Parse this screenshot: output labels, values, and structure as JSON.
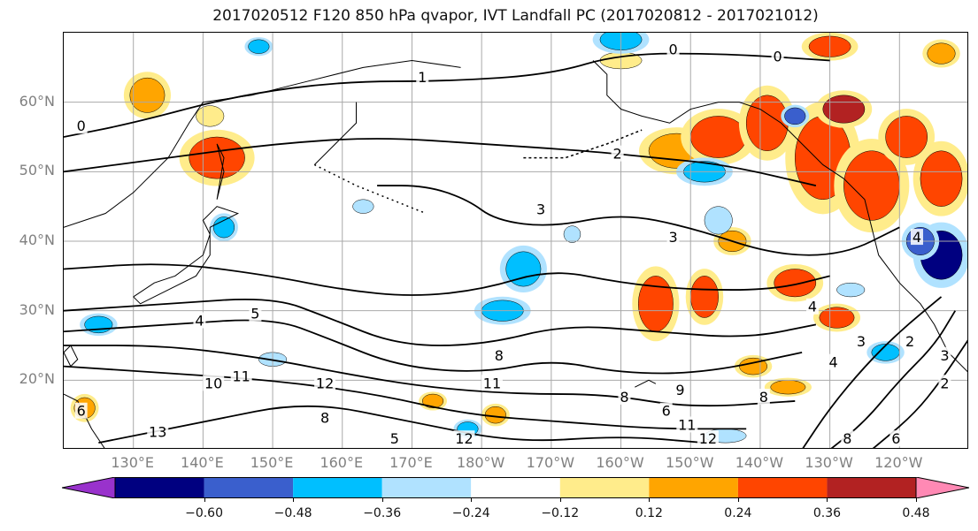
{
  "title": "2017020512 F120 850 hPa qvapor, IVT Landfall PC (2017020812 - 2017021012)",
  "map": {
    "latitudes": [
      {
        "label": "60°N",
        "value": 60
      },
      {
        "label": "50°N",
        "value": 50
      },
      {
        "label": "40°N",
        "value": 40
      },
      {
        "label": "30°N",
        "value": 30
      },
      {
        "label": "20°N",
        "value": 20
      }
    ],
    "longitudes": [
      {
        "label": "130°E",
        "value": 130
      },
      {
        "label": "140°E",
        "value": 140
      },
      {
        "label": "150°E",
        "value": 150
      },
      {
        "label": "160°E",
        "value": 160
      },
      {
        "label": "170°E",
        "value": 170
      },
      {
        "label": "180°W",
        "value": 180
      },
      {
        "label": "170°W",
        "value": 190
      },
      {
        "label": "160°W",
        "value": 200
      },
      {
        "label": "150°W",
        "value": 210
      },
      {
        "label": "140°W",
        "value": 220
      },
      {
        "label": "130°W",
        "value": 230
      },
      {
        "label": "120°W",
        "value": 240
      }
    ],
    "lon_range": [
      120,
      250
    ],
    "lat_range": [
      10,
      70
    ],
    "gridlines": true,
    "contour_labels": [
      {
        "text": "0",
        "lon": 122.5,
        "lat": 56.5
      },
      {
        "text": "1",
        "lon": 171.5,
        "lat": 63.5
      },
      {
        "text": "0",
        "lon": 207.5,
        "lat": 67.5
      },
      {
        "text": "0",
        "lon": 222.5,
        "lat": 66.5
      },
      {
        "text": "2",
        "lon": 199.5,
        "lat": 52.5
      },
      {
        "text": "3",
        "lon": 188.5,
        "lat": 44.5
      },
      {
        "text": "3",
        "lon": 207.5,
        "lat": 40.5
      },
      {
        "text": "4",
        "lon": 139.5,
        "lat": 28.5
      },
      {
        "text": "5",
        "lon": 147.5,
        "lat": 29.5
      },
      {
        "text": "4",
        "lon": 227.5,
        "lat": 30.5
      },
      {
        "text": "8",
        "lon": 182.5,
        "lat": 23.5
      },
      {
        "text": "10",
        "lon": 141.5,
        "lat": 19.5
      },
      {
        "text": "11",
        "lon": 145.5,
        "lat": 20.5
      },
      {
        "text": "12",
        "lon": 157.5,
        "lat": 19.5
      },
      {
        "text": "8",
        "lon": 157.5,
        "lat": 14.5
      },
      {
        "text": "11",
        "lon": 181.5,
        "lat": 19.5
      },
      {
        "text": "8",
        "lon": 200.5,
        "lat": 17.5
      },
      {
        "text": "9",
        "lon": 208.5,
        "lat": 18.5
      },
      {
        "text": "6",
        "lon": 206.5,
        "lat": 15.5
      },
      {
        "text": "11",
        "lon": 209.5,
        "lat": 13.5
      },
      {
        "text": "12",
        "lon": 212.5,
        "lat": 11.5
      },
      {
        "text": "13",
        "lon": 133.5,
        "lat": 12.5
      },
      {
        "text": "5",
        "lon": 167.5,
        "lat": 11.5
      },
      {
        "text": "12",
        "lon": 177.5,
        "lat": 11.5
      },
      {
        "text": "6",
        "lon": 122.5,
        "lat": 15.5
      },
      {
        "text": "8",
        "lon": 220.5,
        "lat": 17.5
      },
      {
        "text": "3",
        "lon": 234.5,
        "lat": 25.5
      },
      {
        "text": "4",
        "lon": 230.5,
        "lat": 22.5
      },
      {
        "text": "2",
        "lon": 241.5,
        "lat": 25.5
      },
      {
        "text": "3",
        "lon": 246.5,
        "lat": 23.5
      },
      {
        "text": "2",
        "lon": 246.5,
        "lat": 19.5
      },
      {
        "text": "4",
        "lon": 242.5,
        "lat": 40.5
      },
      {
        "text": "8",
        "lon": 232.5,
        "lat": 11.5
      },
      {
        "text": "6",
        "lon": 239.5,
        "lat": 11.5
      }
    ],
    "anomaly_patches": [
      {
        "lon": 132,
        "lat": 61,
        "rx": 2.5,
        "ry": 2.5,
        "v": 0.3
      },
      {
        "lon": 142,
        "lat": 52,
        "rx": 4,
        "ry": 3,
        "v": 0.38
      },
      {
        "lon": 141,
        "lat": 58,
        "rx": 2,
        "ry": 1.5,
        "v": 0.2
      },
      {
        "lon": 208,
        "lat": 53,
        "rx": 4,
        "ry": 2.5,
        "v": 0.3
      },
      {
        "lon": 214,
        "lat": 55,
        "rx": 4,
        "ry": 3,
        "v": 0.4
      },
      {
        "lon": 221,
        "lat": 57,
        "rx": 3,
        "ry": 4,
        "v": 0.45
      },
      {
        "lon": 229,
        "lat": 52,
        "rx": 4,
        "ry": 6,
        "v": 0.42
      },
      {
        "lon": 232,
        "lat": 59,
        "rx": 3,
        "ry": 2,
        "v": 0.55
      },
      {
        "lon": 236,
        "lat": 48,
        "rx": 4,
        "ry": 5,
        "v": 0.4
      },
      {
        "lon": 241,
        "lat": 55,
        "rx": 3,
        "ry": 3,
        "v": 0.38
      },
      {
        "lon": 246,
        "lat": 49,
        "rx": 3,
        "ry": 4,
        "v": 0.38
      },
      {
        "lon": 205,
        "lat": 31,
        "rx": 2.5,
        "ry": 4,
        "v": 0.36
      },
      {
        "lon": 212,
        "lat": 32,
        "rx": 2,
        "ry": 3,
        "v": 0.38
      },
      {
        "lon": 225,
        "lat": 34,
        "rx": 3,
        "ry": 2,
        "v": 0.4
      },
      {
        "lon": 216,
        "lat": 40,
        "rx": 2,
        "ry": 1.5,
        "v": 0.28
      },
      {
        "lon": 231,
        "lat": 29,
        "rx": 2.5,
        "ry": 1.5,
        "v": 0.42
      },
      {
        "lon": 219,
        "lat": 22,
        "rx": 2,
        "ry": 1.2,
        "v": 0.3
      },
      {
        "lon": 182,
        "lat": 15,
        "rx": 1.5,
        "ry": 1.2,
        "v": 0.3
      },
      {
        "lon": 173,
        "lat": 17,
        "rx": 1.5,
        "ry": 1,
        "v": 0.25
      },
      {
        "lon": 200,
        "lat": 66,
        "rx": 3,
        "ry": 1.2,
        "v": 0.22
      },
      {
        "lon": 230,
        "lat": 68,
        "rx": 3,
        "ry": 1.5,
        "v": 0.4
      },
      {
        "lon": 246,
        "lat": 67,
        "rx": 2,
        "ry": 1.5,
        "v": 0.3
      },
      {
        "lon": 224,
        "lat": 19,
        "rx": 2.5,
        "ry": 1,
        "v": 0.26
      },
      {
        "lon": 123,
        "lat": 16,
        "rx": 1.5,
        "ry": 1.5,
        "v": 0.3
      },
      {
        "lon": 246,
        "lat": 38,
        "rx": 3,
        "ry": 3.5,
        "v": -0.55
      },
      {
        "lon": 243,
        "lat": 40,
        "rx": 2,
        "ry": 2,
        "v": -0.4
      },
      {
        "lon": 212,
        "lat": 50,
        "rx": 3,
        "ry": 1.5,
        "v": -0.3
      },
      {
        "lon": 200,
        "lat": 69,
        "rx": 3,
        "ry": 1.5,
        "v": -0.3
      },
      {
        "lon": 148,
        "lat": 68,
        "rx": 1.5,
        "ry": 1,
        "v": -0.25
      },
      {
        "lon": 143,
        "lat": 42,
        "rx": 1.5,
        "ry": 1.5,
        "v": -0.25
      },
      {
        "lon": 163,
        "lat": 45,
        "rx": 1.5,
        "ry": 1,
        "v": -0.2
      },
      {
        "lon": 186,
        "lat": 36,
        "rx": 2.5,
        "ry": 2.5,
        "v": -0.3
      },
      {
        "lon": 183,
        "lat": 30,
        "rx": 3,
        "ry": 1.5,
        "v": -0.35
      },
      {
        "lon": 193,
        "lat": 41,
        "rx": 1.2,
        "ry": 1.2,
        "v": -0.2
      },
      {
        "lon": 125,
        "lat": 28,
        "rx": 2,
        "ry": 1.2,
        "v": -0.25
      },
      {
        "lon": 214,
        "lat": 43,
        "rx": 2,
        "ry": 2,
        "v": -0.2
      },
      {
        "lon": 238,
        "lat": 24,
        "rx": 2,
        "ry": 1.2,
        "v": -0.25
      },
      {
        "lon": 215,
        "lat": 12,
        "rx": 3,
        "ry": 1,
        "v": -0.2
      },
      {
        "lon": 233,
        "lat": 33,
        "rx": 2,
        "ry": 1,
        "v": -0.22
      },
      {
        "lon": 225,
        "lat": 58,
        "rx": 1.5,
        "ry": 1.2,
        "v": -0.45
      },
      {
        "lon": 178,
        "lat": 13,
        "rx": 1.5,
        "ry": 1,
        "v": -0.25
      },
      {
        "lon": 150,
        "lat": 23,
        "rx": 2,
        "ry": 1,
        "v": -0.2
      }
    ]
  },
  "colorbar": {
    "colors": [
      "#9932cc",
      "#000080",
      "#3a5fcd",
      "#00bfff",
      "#b0e2ff",
      "#ffffff",
      "#ffec8b",
      "#ffa500",
      "#ff4500",
      "#b22222",
      "#ff89b4"
    ],
    "boundaries": [
      -0.6,
      -0.48,
      -0.36,
      -0.24,
      -0.12,
      0.12,
      0.24,
      0.36,
      0.48,
      0.6
    ],
    "tick_labels": [
      "−0.60",
      "−0.48",
      "−0.36",
      "−0.24",
      "−0.12",
      "0.12",
      "0.24",
      "0.36",
      "0.48",
      "0.60"
    ]
  }
}
